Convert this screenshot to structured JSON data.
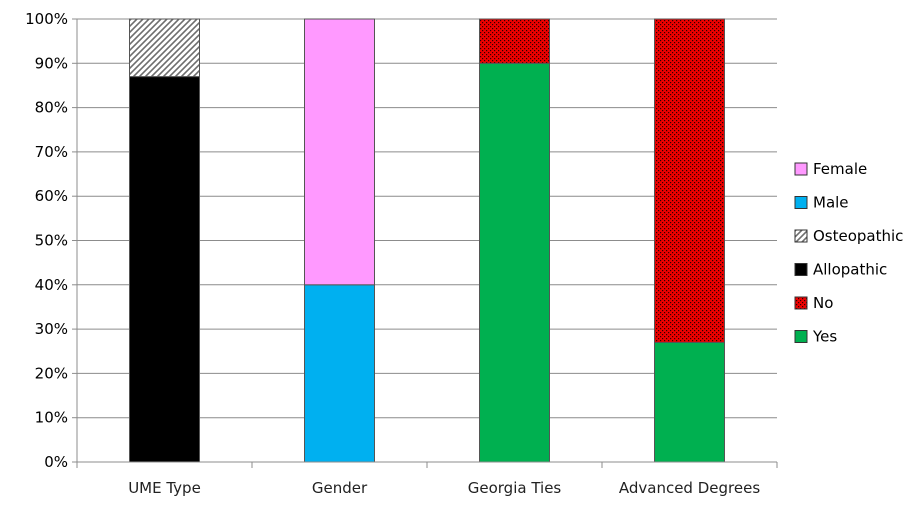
{
  "chart_data": {
    "type": "bar",
    "stacked": true,
    "percent_stacked": true,
    "title": "",
    "xlabel": "",
    "ylabel": "",
    "ylim": [
      0,
      100
    ],
    "y_ticks": [
      "0%",
      "10%",
      "20%",
      "30%",
      "40%",
      "50%",
      "60%",
      "70%",
      "80%",
      "90%",
      "100%"
    ],
    "grid": true,
    "legend_position": "right",
    "categories": [
      "UME Type",
      "Gender",
      "Georgia Ties",
      "Advanced Degrees"
    ],
    "series": [
      {
        "name": "Allopathic",
        "values": [
          87,
          0,
          0,
          0
        ],
        "color": "#000000",
        "pattern": "solid"
      },
      {
        "name": "Osteopathic",
        "values": [
          13,
          0,
          0,
          0
        ],
        "color": "#9a9a9a",
        "pattern": "diagonal-hatch"
      },
      {
        "name": "Male",
        "values": [
          0,
          40,
          0,
          0
        ],
        "color": "#00b0f0",
        "pattern": "solid"
      },
      {
        "name": "Female",
        "values": [
          0,
          60,
          0,
          0
        ],
        "color": "#ff99ff",
        "pattern": "solid"
      },
      {
        "name": "Yes",
        "values": [
          0,
          0,
          90,
          27
        ],
        "color": "#00b050",
        "pattern": "solid"
      },
      {
        "name": "No",
        "values": [
          0,
          0,
          10,
          73
        ],
        "color": "#e00000",
        "pattern": "dotted"
      }
    ],
    "legend": [
      "Female",
      "Male",
      "Osteopathic",
      "Allopathic",
      "No",
      "Yes"
    ]
  }
}
